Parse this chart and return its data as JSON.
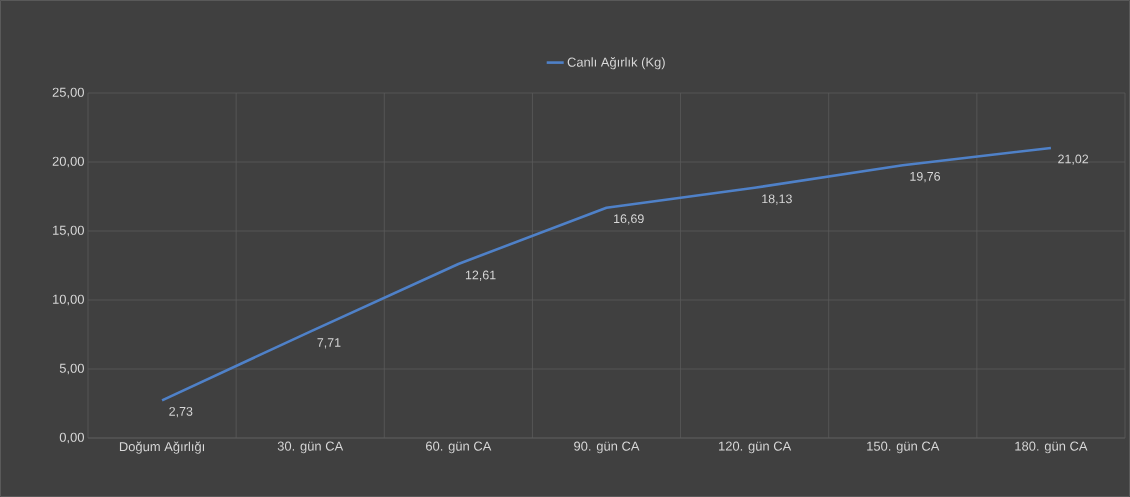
{
  "chart_data": {
    "type": "line",
    "categories": [
      "Doğum Ağırlığı",
      "30. gün CA",
      "60. gün CA",
      "90. gün CA",
      "120. gün CA",
      "150. gün CA",
      "180. gün CA"
    ],
    "series": [
      {
        "name": "Canlı Ağırlık (Kg)",
        "color": "#4f81c8",
        "values": [
          2.73,
          7.71,
          12.61,
          16.69,
          18.13,
          19.76,
          21.02
        ],
        "value_labels": [
          "2,73",
          "7,71",
          "12,61",
          "16,69",
          "18,13",
          "19,76",
          "21,02"
        ]
      }
    ],
    "ylim": [
      0,
      25
    ],
    "yticks": [
      {
        "value": 0,
        "label": "0,00"
      },
      {
        "value": 5,
        "label": "5,00"
      },
      {
        "value": 10,
        "label": "10,00"
      },
      {
        "value": 15,
        "label": "15,00"
      },
      {
        "value": 20,
        "label": "20,00"
      },
      {
        "value": 25,
        "label": "25,00"
      }
    ],
    "grid": true,
    "legend": "top",
    "marker": "none",
    "line_style": "solid"
  }
}
